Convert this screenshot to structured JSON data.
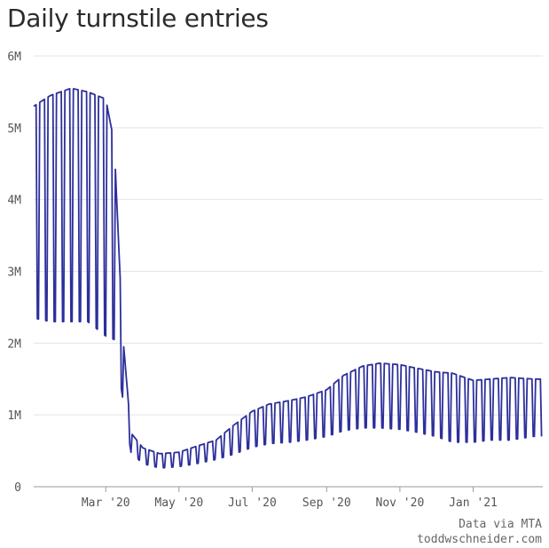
{
  "title": "Daily turnstile entries",
  "credit": {
    "line1": "Data via MTA",
    "line2": "toddwschneider.com"
  },
  "colors": {
    "line": "#2d2f9b",
    "grid": "#e3e3ea",
    "axis": "#999999"
  },
  "chart_data": {
    "type": "line",
    "title": "Daily turnstile entries",
    "xlabel": "",
    "ylabel": "",
    "x_range": [
      "2020-01-01",
      "2021-02-28"
    ],
    "ylim": [
      0,
      6000000
    ],
    "grid": "horizontal",
    "yticks": [
      {
        "value": 0,
        "label": "0"
      },
      {
        "value": 1000000,
        "label": "1M"
      },
      {
        "value": 2000000,
        "label": "2M"
      },
      {
        "value": 3000000,
        "label": "3M"
      },
      {
        "value": 4000000,
        "label": "4M"
      },
      {
        "value": 5000000,
        "label": "5M"
      },
      {
        "value": 6000000,
        "label": "6M"
      }
    ],
    "xticks": [
      {
        "date": "2020-03-01",
        "label": "Mar '20"
      },
      {
        "date": "2020-05-01",
        "label": "May '20"
      },
      {
        "date": "2020-07-01",
        "label": "Jul '20"
      },
      {
        "date": "2020-09-01",
        "label": "Sep '20"
      },
      {
        "date": "2020-11-01",
        "label": "Nov '20"
      },
      {
        "date": "2021-01-01",
        "label": "Jan '21"
      }
    ],
    "series": [
      {
        "pattern": "daily values follow a weekly cycle: weekdays near the weekday level, Saturday and Sunday dip to the weekend level",
        "weekly_levels": [
          {
            "week_of": "2020-01-01",
            "weekday": 5300000,
            "weekend": 2350000
          },
          {
            "week_of": "2020-01-15",
            "weekday": 5450000,
            "weekend": 2300000
          },
          {
            "week_of": "2020-02-01",
            "weekday": 5550000,
            "weekend": 2300000
          },
          {
            "week_of": "2020-02-15",
            "weekday": 5500000,
            "weekend": 2300000
          },
          {
            "week_of": "2020-03-01",
            "weekday": 5400000,
            "weekend": 2100000
          },
          {
            "week_of": "2020-03-08",
            "weekday": 4800000,
            "weekend": 2050000
          },
          {
            "week_of": "2020-03-15",
            "weekday": 2150000,
            "weekend": 1250000
          },
          {
            "week_of": "2020-03-22",
            "weekday": 750000,
            "weekend": 480000
          },
          {
            "week_of": "2020-04-01",
            "weekday": 540000,
            "weekend": 320000
          },
          {
            "week_of": "2020-04-15",
            "weekday": 460000,
            "weekend": 260000
          },
          {
            "week_of": "2020-05-01",
            "weekday": 480000,
            "weekend": 280000
          },
          {
            "week_of": "2020-05-15",
            "weekday": 560000,
            "weekend": 320000
          },
          {
            "week_of": "2020-06-01",
            "weekday": 650000,
            "weekend": 380000
          },
          {
            "week_of": "2020-06-15",
            "weekday": 850000,
            "weekend": 450000
          },
          {
            "week_of": "2020-07-01",
            "weekday": 1050000,
            "weekend": 550000
          },
          {
            "week_of": "2020-07-15",
            "weekday": 1150000,
            "weekend": 600000
          },
          {
            "week_of": "2020-08-01",
            "weekday": 1200000,
            "weekend": 620000
          },
          {
            "week_of": "2020-08-15",
            "weekday": 1250000,
            "weekend": 650000
          },
          {
            "week_of": "2020-09-01",
            "weekday": 1350000,
            "weekend": 700000
          },
          {
            "week_of": "2020-09-15",
            "weekday": 1550000,
            "weekend": 780000
          },
          {
            "week_of": "2020-10-01",
            "weekday": 1680000,
            "weekend": 820000
          },
          {
            "week_of": "2020-10-15",
            "weekday": 1720000,
            "weekend": 820000
          },
          {
            "week_of": "2020-11-01",
            "weekday": 1700000,
            "weekend": 800000
          },
          {
            "week_of": "2020-11-15",
            "weekday": 1650000,
            "weekend": 760000
          },
          {
            "week_of": "2020-12-01",
            "weekday": 1600000,
            "weekend": 700000
          },
          {
            "week_of": "2020-12-15",
            "weekday": 1580000,
            "weekend": 620000
          },
          {
            "week_of": "2021-01-01",
            "weekday": 1480000,
            "weekend": 620000
          },
          {
            "week_of": "2021-01-15",
            "weekday": 1500000,
            "weekend": 650000
          },
          {
            "week_of": "2021-02-01",
            "weekday": 1520000,
            "weekend": 650000
          },
          {
            "week_of": "2021-02-20",
            "weekday": 1500000,
            "weekend": 700000
          }
        ]
      }
    ]
  }
}
